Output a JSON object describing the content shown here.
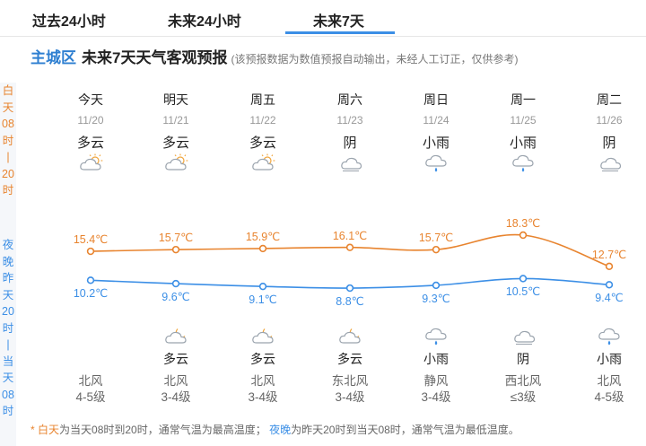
{
  "tabs": [
    {
      "label": "过去24小时",
      "active": false
    },
    {
      "label": "未来24小时",
      "active": false
    },
    {
      "label": "未来7天",
      "active": true
    }
  ],
  "header": {
    "area": "主城区",
    "title": "未来7天天气客观预报",
    "note": "(该预报数据为数值预报自动输出，未经人工订正，仅供参考)"
  },
  "sidebar": {
    "day": [
      "白",
      "天",
      "08",
      "时",
      "|",
      "20",
      "时"
    ],
    "night": [
      "夜",
      "晚",
      "昨",
      "天",
      "20",
      "时",
      "|",
      "当",
      "天",
      "08",
      "时"
    ]
  },
  "days": [
    {
      "name": "今天",
      "date": "11/20",
      "day_weather": "多云",
      "day_icon": "partly-cloudy-day-icon",
      "high": "15.4℃",
      "low": "10.2℃",
      "night_weather": "",
      "night_icon": "",
      "wind_dir": "北风",
      "wind_level": "4-5级"
    },
    {
      "name": "明天",
      "date": "11/21",
      "day_weather": "多云",
      "day_icon": "partly-cloudy-day-icon",
      "high": "15.7℃",
      "low": "9.6℃",
      "night_weather": "多云",
      "night_icon": "partly-cloudy-night-icon",
      "wind_dir": "北风",
      "wind_level": "3-4级"
    },
    {
      "name": "周五",
      "date": "11/22",
      "day_weather": "多云",
      "day_icon": "partly-cloudy-day-icon",
      "high": "15.9℃",
      "low": "9.1℃",
      "night_weather": "多云",
      "night_icon": "partly-cloudy-night-icon",
      "wind_dir": "北风",
      "wind_level": "3-4级"
    },
    {
      "name": "周六",
      "date": "11/23",
      "day_weather": "阴",
      "day_icon": "overcast-icon",
      "high": "16.1℃",
      "low": "8.8℃",
      "night_weather": "多云",
      "night_icon": "partly-cloudy-night-icon",
      "wind_dir": "东北风",
      "wind_level": "3-4级"
    },
    {
      "name": "周日",
      "date": "11/24",
      "day_weather": "小雨",
      "day_icon": "light-rain-icon",
      "high": "15.7℃",
      "low": "9.3℃",
      "night_weather": "小雨",
      "night_icon": "light-rain-icon",
      "wind_dir": "静风",
      "wind_level": "3-4级"
    },
    {
      "name": "周一",
      "date": "11/25",
      "day_weather": "小雨",
      "day_icon": "light-rain-icon",
      "high": "18.3℃",
      "low": "10.5℃",
      "night_weather": "阴",
      "night_icon": "overcast-icon",
      "wind_dir": "西北风",
      "wind_level": "≤3级"
    },
    {
      "name": "周二",
      "date": "11/26",
      "day_weather": "阴",
      "day_icon": "overcast-icon",
      "high": "12.7℃",
      "low": "9.4℃",
      "night_weather": "小雨",
      "night_icon": "light-rain-icon",
      "wind_dir": "北风",
      "wind_level": "4-5级"
    }
  ],
  "chart_data": {
    "type": "line",
    "categories": [
      "11/20",
      "11/21",
      "11/22",
      "11/23",
      "11/24",
      "11/25",
      "11/26"
    ],
    "series": [
      {
        "values": [
          15.4,
          15.7,
          15.9,
          16.1,
          15.7,
          18.3,
          12.7
        ],
        "color": "#e8842f"
      },
      {
        "values": [
          10.2,
          9.6,
          9.1,
          8.8,
          9.3,
          10.5,
          9.4
        ],
        "color": "#3c8fe6"
      }
    ]
  },
  "footer": {
    "star": "*",
    "day_label": "白天",
    "day_text": "为当天08时到20时，通常气温为最高温度；",
    "night_label": "夜晚",
    "night_text": "为昨天20时到当天08时，通常气温为最低温度。"
  }
}
